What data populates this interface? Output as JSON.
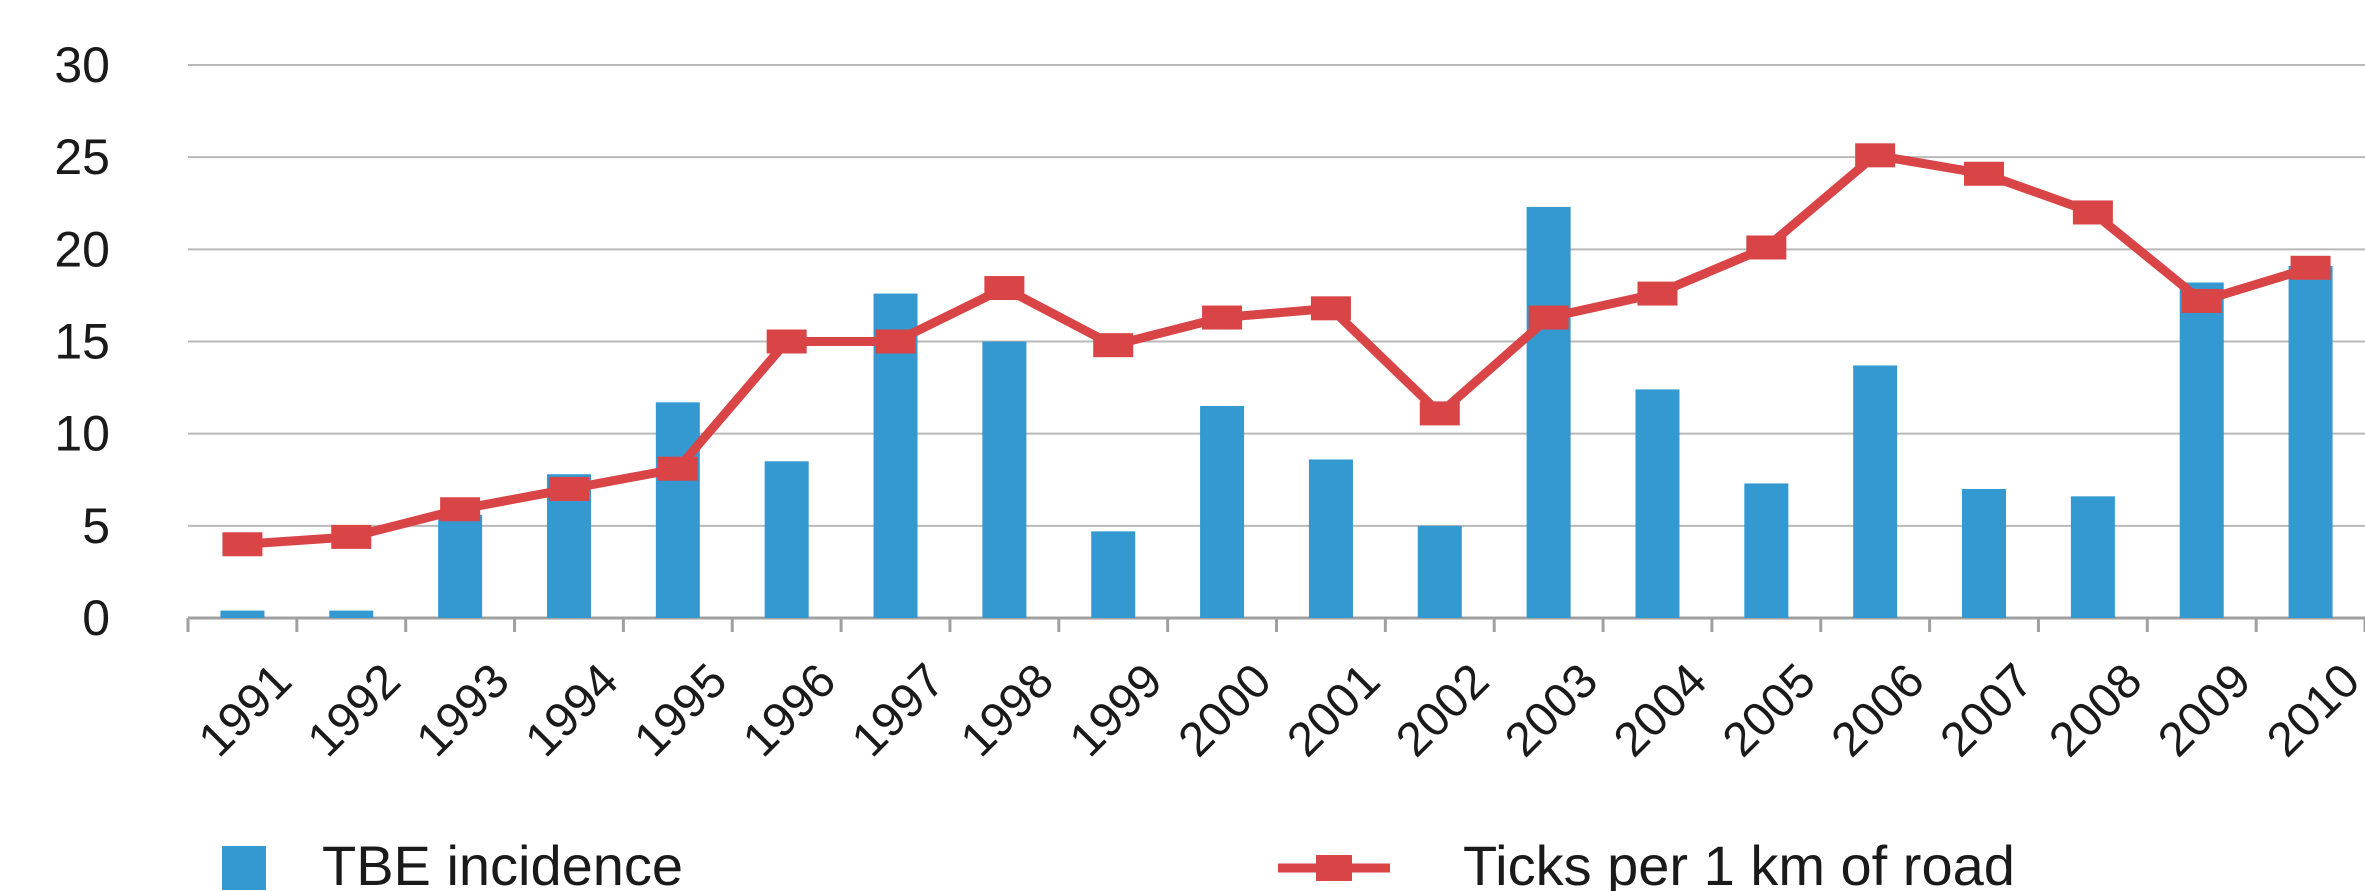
{
  "chart_data": {
    "type": "bar",
    "title": "",
    "xlabel": "",
    "ylabel": "",
    "ylim": [
      0,
      30
    ],
    "yticks": [
      0,
      5,
      10,
      15,
      20,
      25,
      30
    ],
    "categories": [
      "1991",
      "1992",
      "1993",
      "1994",
      "1995",
      "1996",
      "1997",
      "1998",
      "1999",
      "2000",
      "2001",
      "2002",
      "2003",
      "2004",
      "2005",
      "2006",
      "2007",
      "2008",
      "2009",
      "2010"
    ],
    "grid": true,
    "legend_position": "bottom",
    "series": [
      {
        "name": "TBE incidence",
        "type": "bar",
        "color": "#3399d0",
        "values": [
          0.4,
          0.4,
          5.6,
          7.8,
          11.7,
          8.5,
          17.6,
          15.0,
          4.7,
          11.5,
          8.6,
          5.0,
          22.3,
          12.4,
          7.3,
          13.7,
          7.0,
          6.6,
          18.2,
          19.1
        ]
      },
      {
        "name": "Ticks per 1 km of road",
        "type": "line",
        "color": "#d94446",
        "values": [
          4.0,
          4.4,
          5.9,
          7.0,
          8.1,
          15.0,
          15.0,
          17.9,
          14.8,
          16.3,
          16.8,
          11.1,
          16.3,
          17.6,
          20.1,
          25.1,
          24.1,
          22.0,
          17.2,
          19.0
        ]
      }
    ]
  }
}
